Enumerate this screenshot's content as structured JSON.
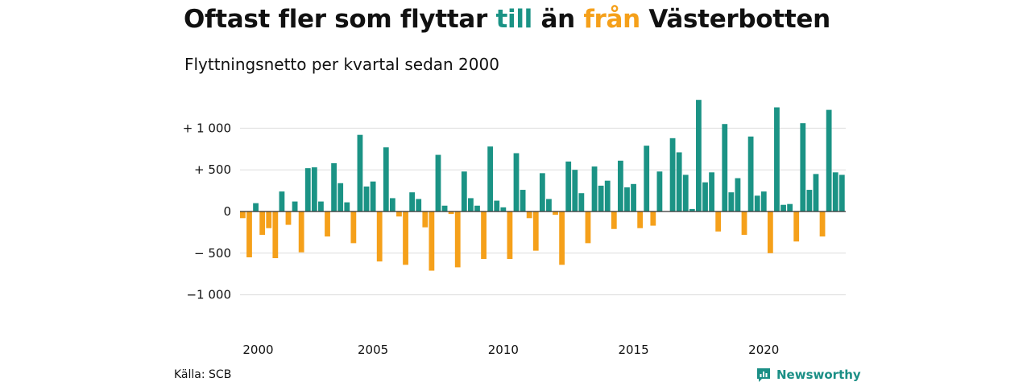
{
  "title": {
    "part1": "Oftast fler som flyttar ",
    "word_in": "till",
    "part2": " än ",
    "word_out": "från",
    "part3": " Västerbotten"
  },
  "subtitle": "Flyttningsnetto per kvartal sedan 2000",
  "source": "Källa: SCB",
  "brand": "Newsworthy",
  "colors": {
    "positive": "#1b9385",
    "negative": "#f5a01a",
    "gridline": "#dddddd",
    "zero_line": "#333333",
    "brand": "#1b8f86"
  },
  "chart_data": {
    "type": "bar",
    "title": "Oftast fler som flyttar till än från Västerbotten",
    "subtitle": "Flyttningsnetto per kvartal sedan 2000",
    "ylim": [
      -1100,
      1400
    ],
    "y_ticks": [
      {
        "value": 1000,
        "label": "+ 1 000"
      },
      {
        "value": 500,
        "label": "+   500"
      },
      {
        "value": 0,
        "label": "0"
      },
      {
        "value": -500,
        "label": "−  500"
      },
      {
        "value": -1000,
        "label": "−1 000"
      }
    ],
    "x_ticks": [
      {
        "value": 2000,
        "label": "2000"
      },
      {
        "value": 2005,
        "label": "2005"
      },
      {
        "value": 2010,
        "label": "2010"
      },
      {
        "value": 2015,
        "label": "2015"
      },
      {
        "value": 2020,
        "label": "2020"
      }
    ],
    "x_start": 2000,
    "periods_per_year": 4,
    "grid": true,
    "values": [
      -80,
      -550,
      100,
      -280,
      -200,
      -560,
      240,
      -160,
      120,
      -490,
      520,
      530,
      120,
      -300,
      580,
      340,
      110,
      -380,
      920,
      300,
      360,
      -600,
      770,
      160,
      -60,
      -640,
      230,
      150,
      -190,
      -710,
      680,
      70,
      -30,
      -670,
      480,
      160,
      70,
      -570,
      780,
      130,
      50,
      -570,
      700,
      260,
      -80,
      -470,
      460,
      150,
      -40,
      -640,
      600,
      500,
      220,
      -380,
      540,
      310,
      370,
      -210,
      610,
      290,
      330,
      -200,
      790,
      -170,
      480,
      0,
      880,
      710,
      440,
      30,
      1340,
      350,
      470,
      -240,
      1050,
      230,
      400,
      -280,
      900,
      190,
      240,
      -500,
      1250,
      80,
      90,
      -360,
      1060,
      260,
      450,
      -300,
      1220,
      470,
      440
    ]
  }
}
